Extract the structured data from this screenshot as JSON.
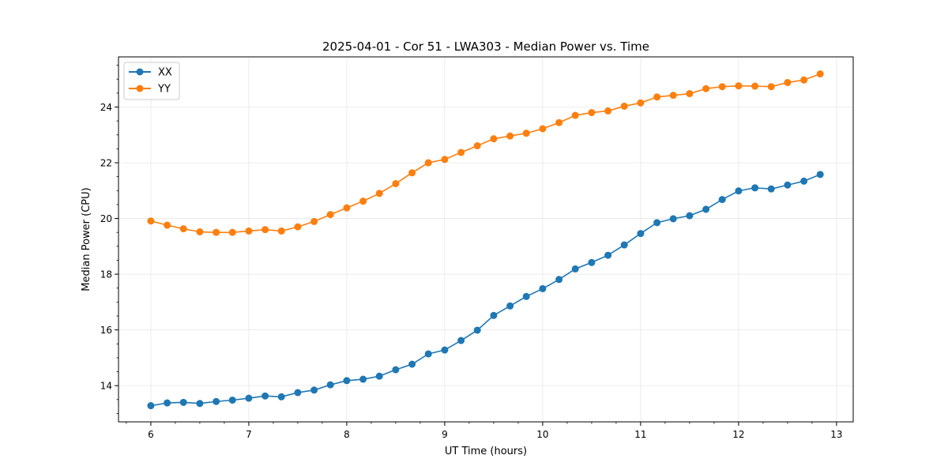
{
  "chart_data": {
    "type": "line",
    "title": "2025-04-01 - Cor 51 - LWA303 - Median Power vs. Time",
    "xlabel": "UT Time (hours)",
    "ylabel": "Median Power (CPU)",
    "xlim": [
      5.67,
      13.17
    ],
    "ylim": [
      12.7,
      25.8
    ],
    "xticks": [
      6,
      7,
      8,
      9,
      10,
      11,
      12,
      13
    ],
    "yticks": [
      14,
      16,
      18,
      20,
      22,
      24
    ],
    "grid": true,
    "legend_position": "upper-left",
    "x": [
      6.0,
      6.167,
      6.333,
      6.5,
      6.667,
      6.833,
      7.0,
      7.167,
      7.333,
      7.5,
      7.667,
      7.833,
      8.0,
      8.167,
      8.333,
      8.5,
      8.667,
      8.833,
      9.0,
      9.167,
      9.333,
      9.5,
      9.667,
      9.833,
      10.0,
      10.167,
      10.333,
      10.5,
      10.667,
      10.833,
      11.0,
      11.167,
      11.333,
      11.5,
      11.667,
      11.833,
      12.0,
      12.167,
      12.333,
      12.5,
      12.667,
      12.833
    ],
    "series": [
      {
        "name": "XX",
        "color": "#1f77b4",
        "values": [
          13.28,
          13.38,
          13.4,
          13.36,
          13.43,
          13.48,
          13.55,
          13.63,
          13.6,
          13.75,
          13.84,
          14.03,
          14.18,
          14.23,
          14.34,
          14.57,
          14.77,
          15.14,
          15.28,
          15.62,
          15.99,
          16.52,
          16.86,
          17.2,
          17.48,
          17.81,
          18.19,
          18.42,
          18.68,
          19.05,
          19.46,
          19.85,
          19.99,
          20.1,
          20.33,
          20.68,
          20.99,
          21.1,
          21.06,
          21.2,
          21.34,
          21.58
        ]
      },
      {
        "name": "YY",
        "color": "#ff7f0e",
        "values": [
          19.91,
          19.76,
          19.63,
          19.52,
          19.5,
          19.5,
          19.55,
          19.6,
          19.55,
          19.7,
          19.89,
          20.14,
          20.38,
          20.62,
          20.9,
          21.25,
          21.64,
          22.0,
          22.12,
          22.37,
          22.61,
          22.86,
          22.96,
          23.06,
          23.22,
          23.44,
          23.7,
          23.8,
          23.86,
          24.03,
          24.15,
          24.36,
          24.42,
          24.48,
          24.66,
          24.73,
          24.76,
          24.75,
          24.73,
          24.88,
          24.97,
          25.19
        ]
      }
    ]
  }
}
